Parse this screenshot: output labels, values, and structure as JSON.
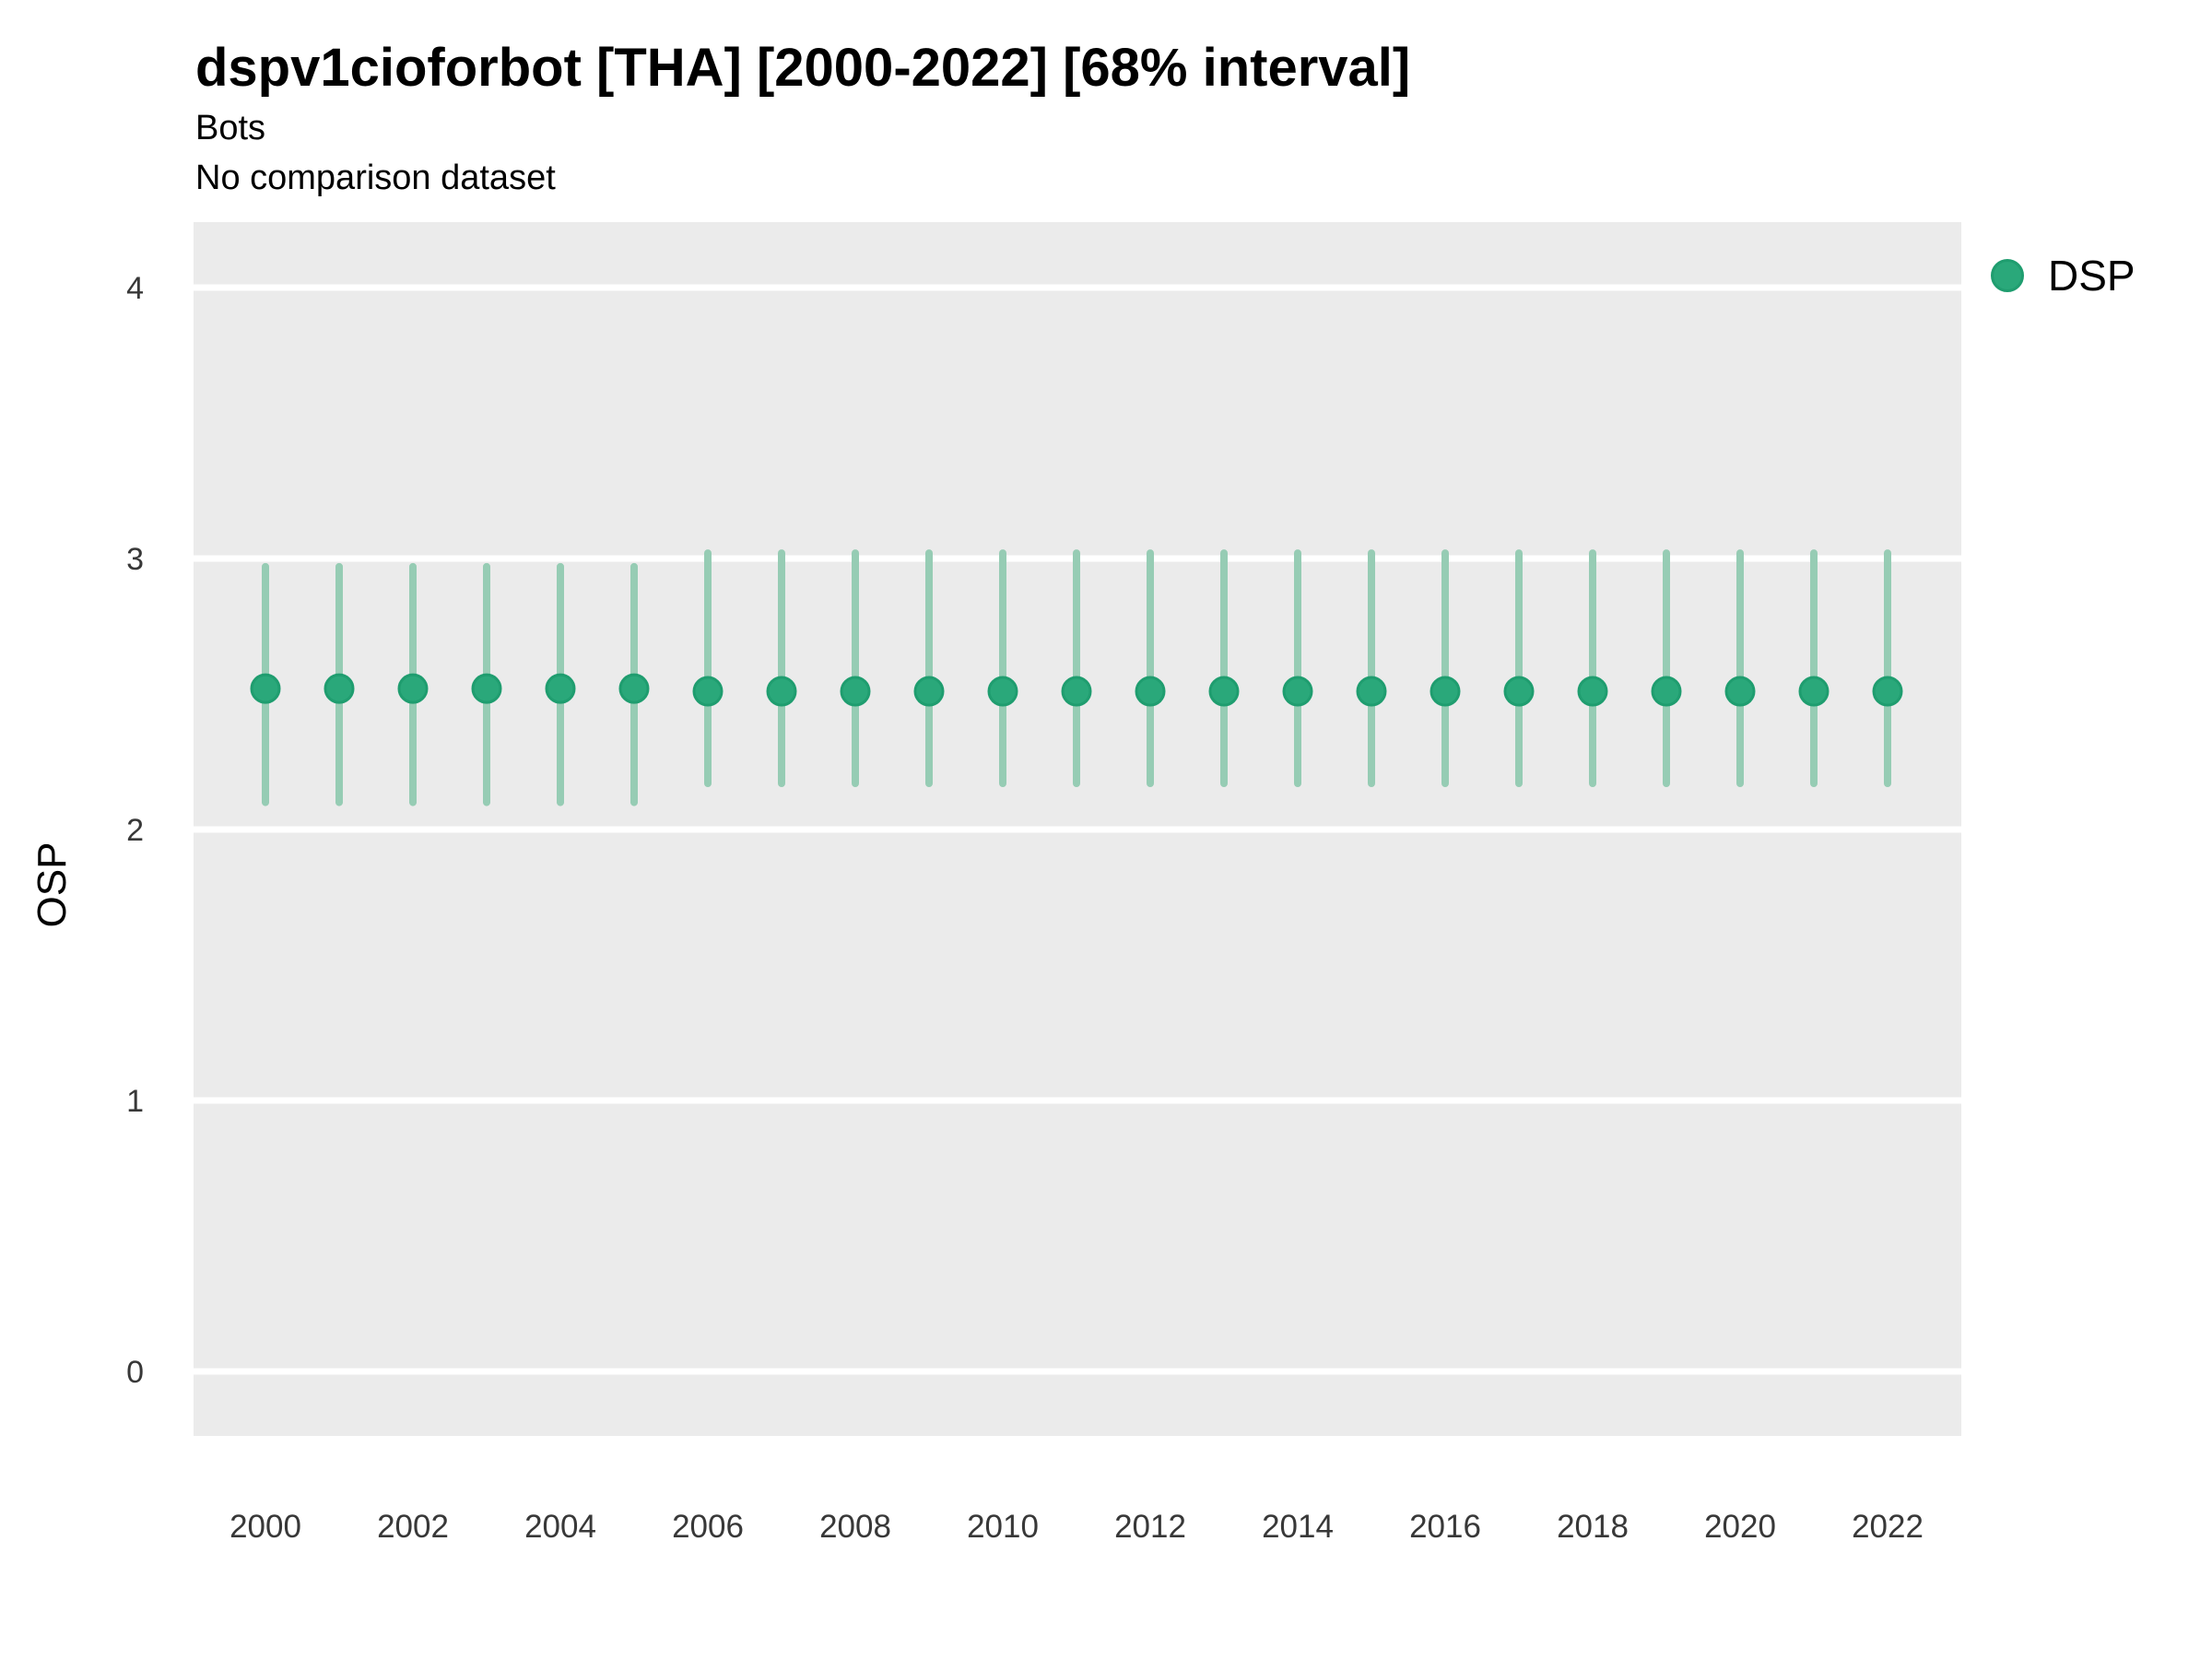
{
  "header": {
    "title": "dspv1cioforbot [THA] [2000-2022] [68% interval]",
    "subtitle": "Bots",
    "comparison_note": "No comparison dataset"
  },
  "legend": {
    "label": "DSP",
    "marker": "circle-icon",
    "marker_color": "#2aa87a",
    "marker_ring_color": "#1f9d6f",
    "position": "right-top"
  },
  "axes": {
    "y_title": "OSP",
    "x_title": "",
    "y_tick_labels": [
      "0",
      "1",
      "2",
      "3",
      "4"
    ],
    "x_tick_labels": [
      "2000",
      "2002",
      "2004",
      "2006",
      "2008",
      "2010",
      "2012",
      "2014",
      "2016",
      "2018",
      "2020",
      "2022"
    ]
  },
  "colors": {
    "panel_background": "#ebebeb",
    "gridline": "#ffffff",
    "point_fill": "#2aa87a",
    "point_ring": "#1f9d6f",
    "interval_line": "#96ccb4",
    "tick_text": "#383838",
    "text": "#000000"
  },
  "chart_data": {
    "type": "scatter",
    "subtype": "pointrange-interval",
    "title": "dspv1cioforbot [THA] [2000-2022] [68% interval]",
    "subtitle": "Bots",
    "note": "No comparison dataset",
    "xlabel": "",
    "ylabel": "OSP",
    "xlim": [
      1999.0,
      2023.0
    ],
    "ylim": [
      -0.24,
      4.24
    ],
    "x_ticks": [
      2000,
      2002,
      2004,
      2006,
      2008,
      2010,
      2012,
      2014,
      2016,
      2018,
      2020,
      2022
    ],
    "y_ticks": [
      0,
      1,
      2,
      3,
      4
    ],
    "grid": "horizontal-major-only",
    "legend_position": "right-top",
    "interval": "68%",
    "series": [
      {
        "name": "DSP",
        "x": [
          2000,
          2001,
          2002,
          2003,
          2004,
          2005,
          2006,
          2007,
          2008,
          2009,
          2010,
          2011,
          2012,
          2013,
          2014,
          2015,
          2016,
          2017,
          2018,
          2019,
          2020,
          2021,
          2022
        ],
        "y": [
          2.52,
          2.52,
          2.52,
          2.52,
          2.52,
          2.52,
          2.51,
          2.51,
          2.51,
          2.51,
          2.51,
          2.51,
          2.51,
          2.51,
          2.51,
          2.51,
          2.51,
          2.51,
          2.51,
          2.51,
          2.51,
          2.51,
          2.51
        ],
        "ymin": [
          2.1,
          2.1,
          2.1,
          2.1,
          2.1,
          2.1,
          2.17,
          2.17,
          2.17,
          2.17,
          2.17,
          2.17,
          2.17,
          2.17,
          2.17,
          2.17,
          2.17,
          2.17,
          2.17,
          2.17,
          2.17,
          2.17,
          2.17
        ],
        "ymax": [
          2.97,
          2.97,
          2.97,
          2.97,
          2.97,
          2.97,
          3.02,
          3.02,
          3.02,
          3.02,
          3.02,
          3.02,
          3.02,
          3.02,
          3.02,
          3.02,
          3.02,
          3.02,
          3.02,
          3.02,
          3.02,
          3.02,
          3.02
        ]
      }
    ]
  }
}
